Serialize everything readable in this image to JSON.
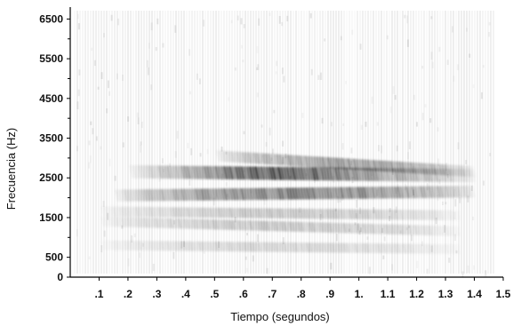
{
  "chart_data": {
    "type": "heatmap",
    "title": "",
    "xlabel": "Tiempo (segundos)",
    "ylabel": "Frecuencia (Hz)",
    "x_ticks": [
      ".1",
      ".2",
      ".3",
      ".4",
      ".5",
      ".6",
      ".7",
      ".8",
      ".9",
      "1.",
      "1.1",
      "1.2",
      "1.3",
      "1.4",
      "1.5"
    ],
    "x_tick_values": [
      0.1,
      0.2,
      0.3,
      0.4,
      0.5,
      0.6,
      0.7,
      0.8,
      0.9,
      1.0,
      1.1,
      1.2,
      1.3,
      1.4,
      1.5
    ],
    "y_ticks": [
      "0",
      "500",
      "1500",
      "2500",
      "3500",
      "4500",
      "5500",
      "6500"
    ],
    "y_tick_values": [
      0,
      500,
      1500,
      2500,
      3500,
      4500,
      5500,
      6500
    ],
    "xlim": [
      0,
      1.5
    ],
    "ylim": [
      0,
      6800
    ],
    "grid": false,
    "colormap": "grayscale (white = low energy, black = high energy)",
    "bands": [
      {
        "t_start": 0.5,
        "t_end": 1.4,
        "f_start": 3050,
        "f_end": 2650,
        "intensity": 0.45
      },
      {
        "t_start": 0.2,
        "t_end": 1.4,
        "f_start": 2650,
        "f_end": 2550,
        "intensity": 0.85
      },
      {
        "t_start": 0.15,
        "t_end": 1.4,
        "f_start": 2050,
        "f_end": 2150,
        "intensity": 0.6
      },
      {
        "t_start": 0.1,
        "t_end": 1.35,
        "f_start": 1650,
        "f_end": 1550,
        "intensity": 0.25
      },
      {
        "t_start": 0.1,
        "t_end": 1.35,
        "f_start": 1400,
        "f_end": 1150,
        "intensity": 0.25
      },
      {
        "t_start": 0.1,
        "t_end": 1.35,
        "f_start": 800,
        "f_end": 700,
        "intensity": 0.18
      }
    ]
  }
}
